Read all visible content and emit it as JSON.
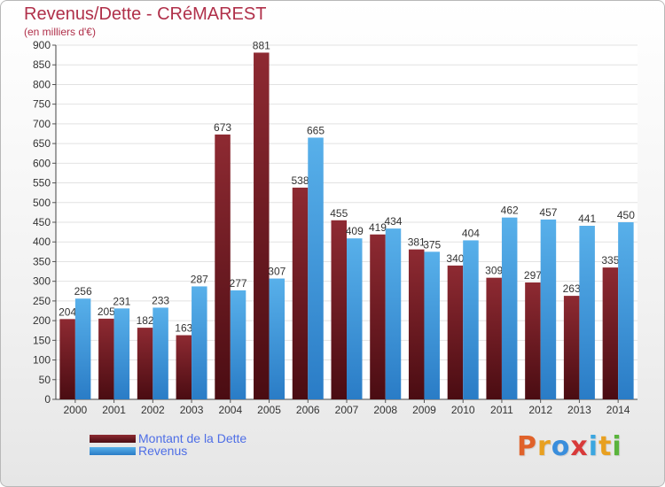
{
  "chart_data": {
    "type": "bar",
    "title": "Revenus/Dette - CRéMAREST",
    "subtitle": "(en milliers d'€)",
    "categories": [
      "2000",
      "2001",
      "2002",
      "2003",
      "2004",
      "2005",
      "2006",
      "2007",
      "2008",
      "2009",
      "2010",
      "2011",
      "2012",
      "2013",
      "2014"
    ],
    "series": [
      {
        "name": "Montant de la Dette",
        "color": "#7a1c24",
        "values": [
          204,
          205,
          182,
          163,
          673,
          881,
          538,
          455,
          419,
          381,
          340,
          309,
          297,
          263,
          335
        ]
      },
      {
        "name": "Revenus",
        "color": "#3f9de0",
        "values": [
          256,
          231,
          233,
          287,
          277,
          307,
          665,
          409,
          434,
          375,
          404,
          462,
          457,
          441,
          450
        ]
      }
    ],
    "ylim": [
      0,
      900
    ],
    "yticks": [
      0,
      50,
      100,
      150,
      200,
      250,
      300,
      350,
      400,
      450,
      500,
      550,
      600,
      650,
      700,
      750,
      800,
      850,
      900
    ],
    "grid": true,
    "legend_position": "bottom-left"
  },
  "logo": {
    "text": "Proxiti",
    "colors": [
      "#e0622a",
      "#e8a020",
      "#3a8edc",
      "#d83a3a",
      "#3aa6e0",
      "#e8a020",
      "#5ab43c"
    ]
  }
}
